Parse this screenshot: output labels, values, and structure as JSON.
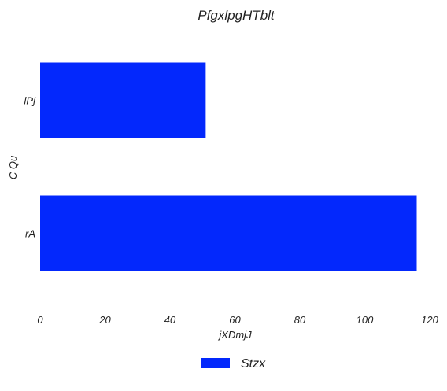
{
  "chart_data": {
    "type": "bar",
    "orientation": "horizontal",
    "title": "PfgxlpgHTblt",
    "xlabel": "jXDmjJ",
    "ylabel": "C Qu",
    "categories": [
      "lPj",
      "rA"
    ],
    "series": [
      {
        "name": "Stzx",
        "values": [
          51,
          116
        ],
        "color": "#0328fc"
      }
    ],
    "xlim": [
      0,
      120
    ],
    "xticks": [
      0,
      20,
      40,
      60,
      80,
      100,
      120
    ],
    "grid": false,
    "legend_position": "bottom-center"
  }
}
